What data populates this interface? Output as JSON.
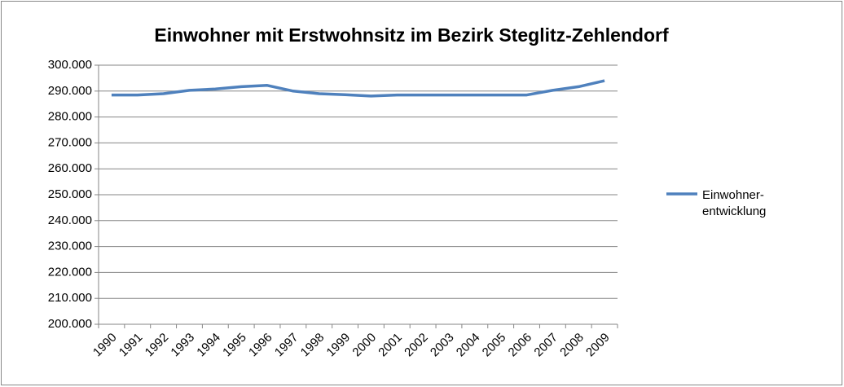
{
  "chart_data": {
    "type": "line",
    "title": "Einwohner mit Erstwohnsitz im Bezirk Steglitz-Zehlendorf",
    "categories": [
      "1990",
      "1991",
      "1992",
      "1993",
      "1994",
      "1995",
      "1996",
      "1997",
      "1998",
      "1999",
      "2000",
      "2001",
      "2002",
      "2003",
      "2004",
      "2005",
      "2006",
      "2007",
      "2008",
      "2009"
    ],
    "series": [
      {
        "name": "Einwohner-entwicklung",
        "color": "#4f81bd",
        "values": [
          288500,
          288500,
          289000,
          290300,
          290800,
          291700,
          292200,
          290000,
          289000,
          288600,
          288100,
          288500,
          288500,
          288500,
          288500,
          288500,
          288500,
          290300,
          291700,
          294000
        ]
      }
    ],
    "ylim": [
      200000,
      300000
    ],
    "yticks": [
      {
        "value": 200000,
        "label": "200.000"
      },
      {
        "value": 210000,
        "label": "210.000"
      },
      {
        "value": 220000,
        "label": "220.000"
      },
      {
        "value": 230000,
        "label": "230.000"
      },
      {
        "value": 240000,
        "label": "240.000"
      },
      {
        "value": 250000,
        "label": "250.000"
      },
      {
        "value": 260000,
        "label": "260.000"
      },
      {
        "value": 270000,
        "label": "270.000"
      },
      {
        "value": 280000,
        "label": "280.000"
      },
      {
        "value": 290000,
        "label": "290.000"
      },
      {
        "value": 300000,
        "label": "300.000"
      }
    ],
    "grid": true,
    "legend": "right"
  }
}
